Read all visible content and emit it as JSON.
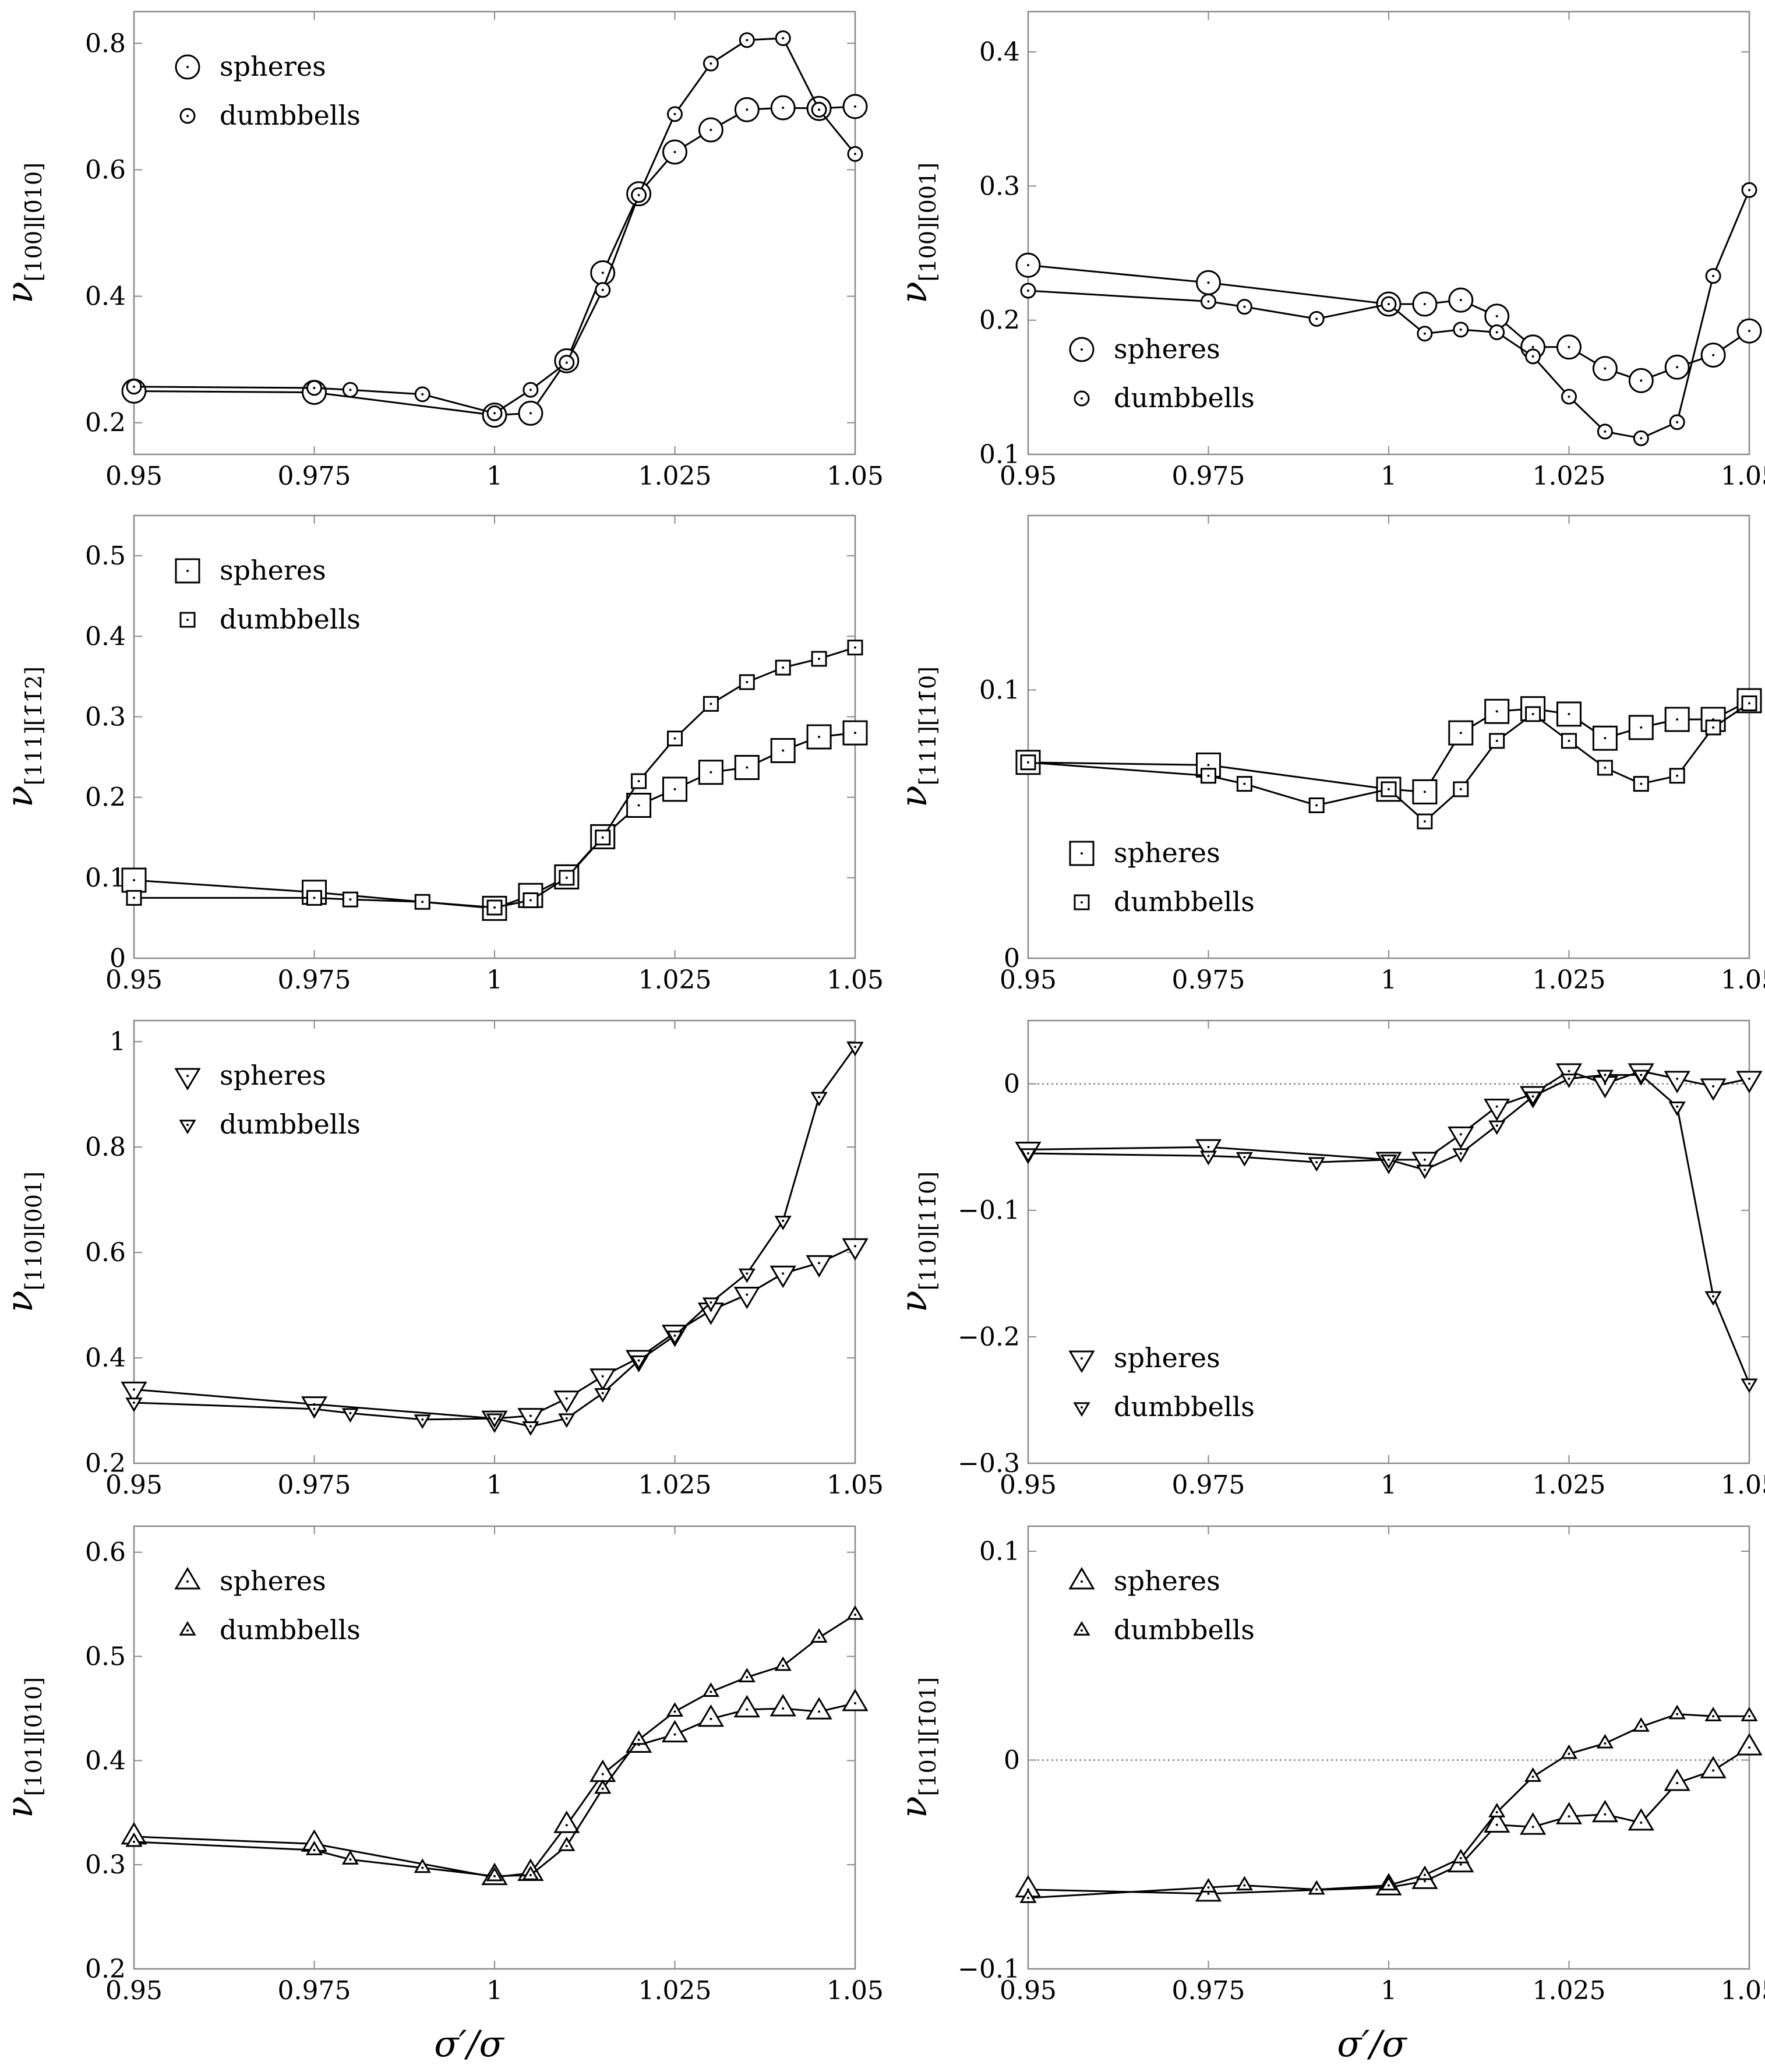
{
  "figure": {
    "xlabel": "σ′/σ",
    "x_ticks": [
      "0.95",
      "0.975",
      "1",
      "1.025",
      "1.05"
    ],
    "x_tick_values": [
      0.95,
      0.975,
      1.0,
      1.025,
      1.05
    ],
    "xlim": [
      0.95,
      1.05
    ]
  },
  "chart_data": [
    {
      "id": "p100_010",
      "type": "line",
      "marker": "circle",
      "ylabel_main": "ν",
      "ylabel_sub": "[100][0̄10]",
      "ylim": [
        0.15,
        0.85
      ],
      "yticks": [
        0.2,
        0.4,
        0.6,
        0.8
      ],
      "yticklabels": [
        "0.2",
        "0.4",
        "0.6",
        "0.8"
      ],
      "zero_line": false,
      "legend": "top-left",
      "series": [
        {
          "name": "spheres",
          "size": "large",
          "x": [
            0.95,
            0.975,
            1.0,
            1.005,
            1.01,
            1.015,
            1.02,
            1.025,
            1.03,
            1.035,
            1.04,
            1.045,
            1.05
          ],
          "y": [
            0.25,
            0.248,
            0.212,
            0.215,
            0.298,
            0.437,
            0.562,
            0.628,
            0.663,
            0.695,
            0.698,
            0.697,
            0.7
          ]
        },
        {
          "name": "dumbbells",
          "size": "small",
          "x": [
            0.95,
            0.975,
            0.98,
            0.99,
            1.0,
            1.005,
            1.01,
            1.015,
            1.02,
            1.025,
            1.03,
            1.035,
            1.04,
            1.045,
            1.05
          ],
          "y": [
            0.257,
            0.255,
            0.252,
            0.245,
            0.215,
            0.252,
            0.295,
            0.41,
            0.56,
            0.688,
            0.768,
            0.805,
            0.808,
            0.695,
            0.625
          ]
        }
      ]
    },
    {
      "id": "p100_001",
      "type": "line",
      "marker": "circle",
      "ylabel_main": "ν",
      "ylabel_sub": "[100][001]",
      "ylim": [
        0.1,
        0.43
      ],
      "yticks": [
        0.1,
        0.2,
        0.3,
        0.4
      ],
      "yticklabels": [
        "0.1",
        "0.2",
        "0.3",
        "0.4"
      ],
      "zero_line": false,
      "legend": "bottom-left",
      "series": [
        {
          "name": "spheres",
          "size": "large",
          "x": [
            0.95,
            0.975,
            1.0,
            1.005,
            1.01,
            1.015,
            1.02,
            1.025,
            1.03,
            1.035,
            1.04,
            1.045,
            1.05
          ],
          "y": [
            0.241,
            0.228,
            0.212,
            0.212,
            0.215,
            0.203,
            0.18,
            0.18,
            0.164,
            0.155,
            0.165,
            0.174,
            0.192
          ]
        },
        {
          "name": "dumbbells",
          "size": "small",
          "x": [
            0.95,
            0.975,
            0.98,
            0.99,
            1.0,
            1.005,
            1.01,
            1.015,
            1.02,
            1.025,
            1.03,
            1.035,
            1.04,
            1.045,
            1.05
          ],
          "y": [
            0.222,
            0.214,
            0.21,
            0.201,
            0.212,
            0.19,
            0.193,
            0.191,
            0.173,
            0.143,
            0.117,
            0.112,
            0.124,
            0.233,
            0.297
          ]
        }
      ]
    },
    {
      "id": "p111_112",
      "type": "line",
      "marker": "square",
      "ylabel_main": "ν",
      "ylabel_sub": "[111][1̄1̄2]",
      "ylim": [
        0,
        0.55
      ],
      "yticks": [
        0,
        0.1,
        0.2,
        0.3,
        0.4,
        0.5
      ],
      "yticklabels": [
        "0",
        "0.1",
        "0.2",
        "0.3",
        "0.4",
        "0.5"
      ],
      "zero_line": false,
      "legend": "top-left",
      "series": [
        {
          "name": "spheres",
          "size": "large",
          "x": [
            0.95,
            0.975,
            1.0,
            1.005,
            1.01,
            1.015,
            1.02,
            1.025,
            1.03,
            1.035,
            1.04,
            1.045,
            1.05
          ],
          "y": [
            0.097,
            0.082,
            0.062,
            0.078,
            0.101,
            0.151,
            0.19,
            0.21,
            0.231,
            0.237,
            0.258,
            0.275,
            0.28
          ]
        },
        {
          "name": "dumbbells",
          "size": "small",
          "x": [
            0.95,
            0.975,
            0.98,
            0.99,
            1.0,
            1.005,
            1.01,
            1.015,
            1.02,
            1.025,
            1.03,
            1.035,
            1.04,
            1.045,
            1.05
          ],
          "y": [
            0.075,
            0.075,
            0.073,
            0.07,
            0.063,
            0.072,
            0.1,
            0.15,
            0.22,
            0.273,
            0.316,
            0.343,
            0.361,
            0.372,
            0.386
          ]
        }
      ]
    },
    {
      "id": "p111_110",
      "type": "line",
      "marker": "square",
      "ylabel_main": "ν",
      "ylabel_sub": "[111][11̄0]",
      "ylim": [
        0,
        0.165
      ],
      "yticks": [
        0,
        0.1
      ],
      "yticklabels": [
        "0",
        "0.1"
      ],
      "zero_line": false,
      "legend": "bottom-left",
      "series": [
        {
          "name": "spheres",
          "size": "large",
          "x": [
            0.95,
            0.975,
            1.0,
            1.005,
            1.01,
            1.015,
            1.02,
            1.025,
            1.03,
            1.035,
            1.04,
            1.045,
            1.05
          ],
          "y": [
            0.073,
            0.072,
            0.063,
            0.062,
            0.084,
            0.092,
            0.093,
            0.091,
            0.082,
            0.086,
            0.089,
            0.089,
            0.096
          ]
        },
        {
          "name": "dumbbells",
          "size": "small",
          "x": [
            0.95,
            0.975,
            0.98,
            0.99,
            1.0,
            1.005,
            1.01,
            1.015,
            1.02,
            1.025,
            1.03,
            1.035,
            1.04,
            1.045,
            1.05
          ],
          "y": [
            0.073,
            0.068,
            0.065,
            0.057,
            0.063,
            0.051,
            0.063,
            0.081,
            0.091,
            0.081,
            0.071,
            0.065,
            0.068,
            0.086,
            0.095
          ]
        }
      ]
    },
    {
      "id": "p110_001",
      "type": "line",
      "marker": "triangle-down",
      "ylabel_main": "ν",
      "ylabel_sub": "[110][001]",
      "ylim": [
        0.2,
        1.04
      ],
      "yticks": [
        0.2,
        0.4,
        0.6,
        0.8,
        1.0
      ],
      "yticklabels": [
        "0.2",
        "0.4",
        "0.6",
        "0.8",
        "1"
      ],
      "zero_line": false,
      "legend": "top-left",
      "series": [
        {
          "name": "spheres",
          "size": "large",
          "x": [
            0.95,
            0.975,
            1.0,
            1.005,
            1.01,
            1.015,
            1.02,
            1.025,
            1.03,
            1.035,
            1.04,
            1.045,
            1.05
          ],
          "y": [
            0.34,
            0.312,
            0.285,
            0.29,
            0.323,
            0.365,
            0.4,
            0.448,
            0.49,
            0.52,
            0.56,
            0.58,
            0.612
          ]
        },
        {
          "name": "dumbbells",
          "size": "small",
          "x": [
            0.95,
            0.975,
            0.98,
            0.99,
            1.0,
            1.005,
            1.01,
            1.015,
            1.02,
            1.025,
            1.03,
            1.035,
            1.04,
            1.045,
            1.05
          ],
          "y": [
            0.315,
            0.303,
            0.295,
            0.283,
            0.285,
            0.27,
            0.285,
            0.333,
            0.395,
            0.442,
            0.505,
            0.56,
            0.66,
            0.895,
            0.99
          ]
        }
      ]
    },
    {
      "id": "p110_110",
      "type": "line",
      "marker": "triangle-down",
      "ylabel_main": "ν",
      "ylabel_sub": "[110][11̄0]",
      "ylim": [
        -0.3,
        0.05
      ],
      "yticks": [
        -0.3,
        -0.2,
        -0.1,
        0
      ],
      "yticklabels": [
        "−0.3",
        "−0.2",
        "−0.1",
        "0"
      ],
      "zero_line": true,
      "legend": "bottom-left",
      "series": [
        {
          "name": "spheres",
          "size": "large",
          "x": [
            0.95,
            0.975,
            1.0,
            1.005,
            1.01,
            1.015,
            1.02,
            1.025,
            1.03,
            1.035,
            1.04,
            1.045,
            1.05
          ],
          "y": [
            -0.052,
            -0.05,
            -0.06,
            -0.06,
            -0.04,
            -0.018,
            -0.008,
            0.01,
            0.0,
            0.01,
            0.004,
            -0.002,
            0.004
          ]
        },
        {
          "name": "dumbbells",
          "size": "small",
          "x": [
            0.95,
            0.975,
            0.98,
            0.99,
            1.0,
            1.005,
            1.01,
            1.015,
            1.02,
            1.025,
            1.03,
            1.035,
            1.04,
            1.045,
            1.05
          ],
          "y": [
            -0.055,
            -0.057,
            -0.058,
            -0.062,
            -0.06,
            -0.068,
            -0.055,
            -0.033,
            -0.01,
            0.004,
            0.007,
            0.007,
            -0.018,
            -0.168,
            -0.237
          ]
        }
      ]
    },
    {
      "id": "p101_010",
      "type": "line",
      "marker": "triangle-up",
      "ylabel_main": "ν",
      "ylabel_sub": "[101][0̄10]",
      "ylim": [
        0.2,
        0.625
      ],
      "yticks": [
        0.2,
        0.3,
        0.4,
        0.5,
        0.6
      ],
      "yticklabels": [
        "0.2",
        "0.3",
        "0.4",
        "0.5",
        "0.6"
      ],
      "zero_line": false,
      "legend": "top-left",
      "series": [
        {
          "name": "spheres",
          "size": "large",
          "x": [
            0.95,
            0.975,
            1.0,
            1.005,
            1.01,
            1.015,
            1.02,
            1.025,
            1.03,
            1.035,
            1.04,
            1.045,
            1.05
          ],
          "y": [
            0.327,
            0.32,
            0.288,
            0.292,
            0.338,
            0.387,
            0.415,
            0.425,
            0.44,
            0.449,
            0.45,
            0.447,
            0.455
          ]
        },
        {
          "name": "dumbbells",
          "size": "small",
          "x": [
            0.95,
            0.975,
            0.98,
            0.99,
            1.0,
            1.005,
            1.01,
            1.015,
            1.02,
            1.025,
            1.03,
            1.035,
            1.04,
            1.045,
            1.05
          ],
          "y": [
            0.322,
            0.314,
            0.305,
            0.297,
            0.289,
            0.29,
            0.318,
            0.373,
            0.42,
            0.447,
            0.466,
            0.48,
            0.491,
            0.518,
            0.54
          ]
        }
      ]
    },
    {
      "id": "p101_101",
      "type": "line",
      "marker": "triangle-up",
      "ylabel_main": "ν",
      "ylabel_sub": "[101][1̄01]",
      "ylim": [
        -0.1,
        0.112
      ],
      "yticks": [
        -0.1,
        0,
        0.1
      ],
      "yticklabels": [
        "−0.1",
        "0",
        "0.1"
      ],
      "zero_line": true,
      "legend": "top-left",
      "series": [
        {
          "name": "spheres",
          "size": "large",
          "x": [
            0.95,
            0.975,
            1.0,
            1.005,
            1.01,
            1.015,
            1.02,
            1.025,
            1.03,
            1.035,
            1.04,
            1.045,
            1.05
          ],
          "y": [
            -0.062,
            -0.064,
            -0.061,
            -0.058,
            -0.05,
            -0.031,
            -0.032,
            -0.027,
            -0.026,
            -0.03,
            -0.011,
            -0.005,
            0.006
          ]
        },
        {
          "name": "dumbbells",
          "size": "small",
          "x": [
            0.95,
            0.975,
            0.98,
            0.99,
            1.0,
            1.005,
            1.01,
            1.015,
            1.02,
            1.025,
            1.03,
            1.035,
            1.04,
            1.045,
            1.05
          ],
          "y": [
            -0.066,
            -0.061,
            -0.06,
            -0.062,
            -0.06,
            -0.055,
            -0.047,
            -0.025,
            -0.008,
            0.003,
            0.008,
            0.016,
            0.022,
            0.021,
            0.021
          ]
        }
      ]
    }
  ]
}
